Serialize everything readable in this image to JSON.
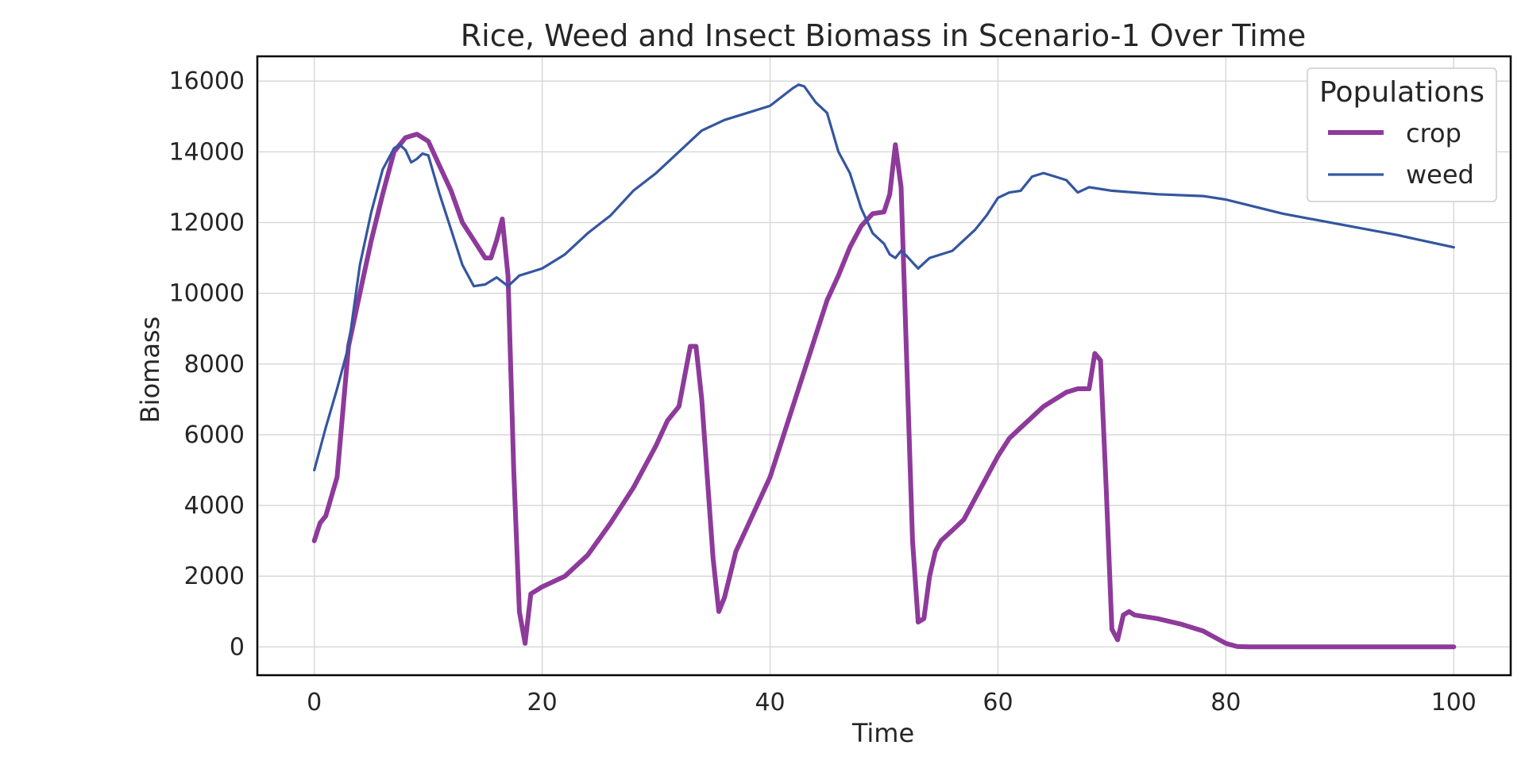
{
  "chart_data": {
    "type": "line",
    "title": "Rice, Weed and Insect Biomass in Scenario-1 Over Time",
    "xlabel": "Time",
    "ylabel": "Biomass",
    "xlim": [
      -5,
      105
    ],
    "ylim": [
      -800,
      16700
    ],
    "xticks": [
      0,
      20,
      40,
      60,
      80,
      100
    ],
    "yticks": [
      0,
      2000,
      4000,
      6000,
      8000,
      10000,
      12000,
      14000,
      16000
    ],
    "grid": true,
    "legend": {
      "title": "Populations",
      "position": "top-right"
    },
    "series": [
      {
        "name": "crop",
        "color": "#8e3a9b",
        "line_width": "thick",
        "x": [
          0,
          0.5,
          1,
          2,
          3,
          4,
          5,
          6,
          7,
          8,
          9,
          10,
          11,
          12,
          13,
          14,
          15,
          15.5,
          16,
          16.5,
          17,
          17.5,
          18,
          18.5,
          19,
          20,
          22,
          24,
          26,
          28,
          30,
          31,
          32,
          33,
          33.5,
          34,
          35,
          35.5,
          36,
          37,
          38,
          40,
          42,
          44,
          45,
          46,
          47,
          48,
          49,
          50,
          50.5,
          51,
          51.5,
          52,
          52.5,
          53,
          53.5,
          54,
          54.5,
          55,
          56,
          57,
          58,
          59,
          60,
          61,
          62,
          64,
          66,
          67,
          68,
          68.5,
          69,
          69.5,
          70,
          70.5,
          71,
          71.5,
          72,
          74,
          76,
          78,
          80,
          81,
          82,
          85,
          90,
          95,
          100
        ],
        "values": [
          3000,
          3500,
          3700,
          4800,
          8500,
          10000,
          11500,
          12800,
          14000,
          14400,
          14500,
          14300,
          13600,
          12900,
          12000,
          11500,
          11000,
          11000,
          11500,
          12100,
          10500,
          5000,
          1000,
          100,
          1500,
          1700,
          2000,
          2600,
          3500,
          4500,
          5700,
          6400,
          6800,
          8500,
          8500,
          7000,
          2500,
          1000,
          1400,
          2700,
          3400,
          4800,
          6800,
          8800,
          9800,
          10500,
          11300,
          11900,
          12250,
          12300,
          12800,
          14200,
          13000,
          8000,
          3000,
          700,
          800,
          2000,
          2700,
          3000,
          3300,
          3600,
          4200,
          4800,
          5400,
          5900,
          6200,
          6800,
          7200,
          7300,
          7300,
          8300,
          8100,
          4500,
          500,
          200,
          900,
          1000,
          900,
          800,
          650,
          450,
          100,
          10,
          0,
          0,
          0,
          0,
          0
        ]
      },
      {
        "name": "weed",
        "color": "#34569f",
        "line_width": "thin",
        "x": [
          0,
          1,
          2,
          3,
          4,
          5,
          6,
          7,
          7.5,
          8,
          8.5,
          9,
          9.5,
          10,
          11,
          12,
          13,
          14,
          15,
          16,
          17,
          18,
          19,
          20,
          21,
          22,
          24,
          26,
          28,
          30,
          32,
          34,
          36,
          38,
          40,
          42,
          42.5,
          43,
          44,
          45,
          46,
          47,
          48,
          49,
          50,
          50.5,
          51,
          51.5,
          52,
          53,
          54,
          55,
          56,
          57,
          58,
          59,
          60,
          61,
          62,
          63,
          64,
          65,
          66,
          67,
          68,
          70,
          74,
          78,
          80,
          85,
          90,
          95,
          100
        ],
        "values": [
          5000,
          6200,
          7300,
          8500,
          10800,
          12300,
          13500,
          14100,
          14200,
          14050,
          13700,
          13800,
          13950,
          13900,
          12800,
          11800,
          10800,
          10200,
          10250,
          10450,
          10200,
          10500,
          10600,
          10700,
          10900,
          11100,
          11700,
          12200,
          12900,
          13400,
          14000,
          14600,
          14900,
          15100,
          15300,
          15800,
          15900,
          15850,
          15400,
          15100,
          14000,
          13400,
          12400,
          11700,
          11400,
          11100,
          11000,
          11200,
          11050,
          10700,
          11000,
          11100,
          11200,
          11500,
          11800,
          12200,
          12700,
          12850,
          12900,
          13300,
          13400,
          13300,
          13200,
          12850,
          13000,
          12900,
          12800,
          12750,
          12650,
          12250,
          11950,
          11650,
          11300
        ]
      }
    ]
  }
}
